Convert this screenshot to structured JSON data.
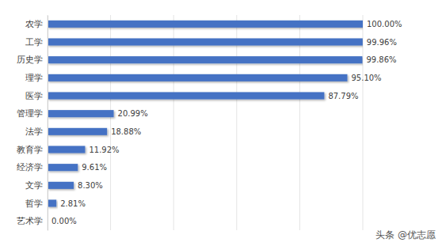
{
  "chart_data": {
    "type": "bar",
    "orientation": "horizontal",
    "categories": [
      "农学",
      "工学",
      "历史学",
      "理学",
      "医学",
      "管理学",
      "法学",
      "教育学",
      "经济学",
      "文学",
      "哲学",
      "艺术学"
    ],
    "values": [
      100.0,
      99.96,
      99.86,
      95.1,
      87.79,
      20.99,
      18.88,
      11.92,
      9.61,
      8.3,
      2.81,
      0.0
    ],
    "value_labels": [
      "100.00%",
      "99.96%",
      "99.86%",
      "95.10%",
      "87.79%",
      "20.99%",
      "18.88%",
      "11.92%",
      "9.61%",
      "8.30%",
      "2.81%",
      "0.00%"
    ],
    "color": "#4472c4",
    "xlim": [
      0,
      100
    ],
    "xticks": [
      0,
      20,
      40,
      60,
      80,
      100
    ],
    "grid": true,
    "data_labels": true,
    "tick_labels": "y",
    "annotations": [
      "头条 @优志愿"
    ]
  }
}
